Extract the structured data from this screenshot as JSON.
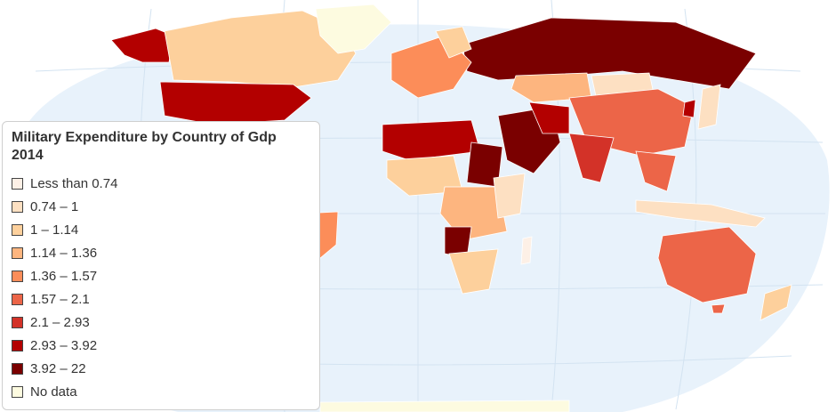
{
  "map": {
    "ocean_color": "#e8f2fb",
    "graticule_color": "#d3e3f1",
    "border_color": "#ffffff"
  },
  "legend": {
    "title": "Military Expenditure by Country of Gdp 2014",
    "items": [
      {
        "label": "Less than 0.74",
        "color": "#fdf0e6"
      },
      {
        "label": "0.74 – 1",
        "color": "#fde0c2"
      },
      {
        "label": "1 – 1.14",
        "color": "#fdd09c"
      },
      {
        "label": "1.14 – 1.36",
        "color": "#fdb57f"
      },
      {
        "label": "1.36 – 1.57",
        "color": "#fc8d59"
      },
      {
        "label": "1.57 – 2.1",
        "color": "#ec6548"
      },
      {
        "label": "2.1 – 2.93",
        "color": "#d33228"
      },
      {
        "label": "2.93 – 3.92",
        "color": "#b30000"
      },
      {
        "label": "3.92 – 22",
        "color": "#7a0000"
      },
      {
        "label": "No data",
        "color": "#fdfbe0"
      }
    ]
  }
}
